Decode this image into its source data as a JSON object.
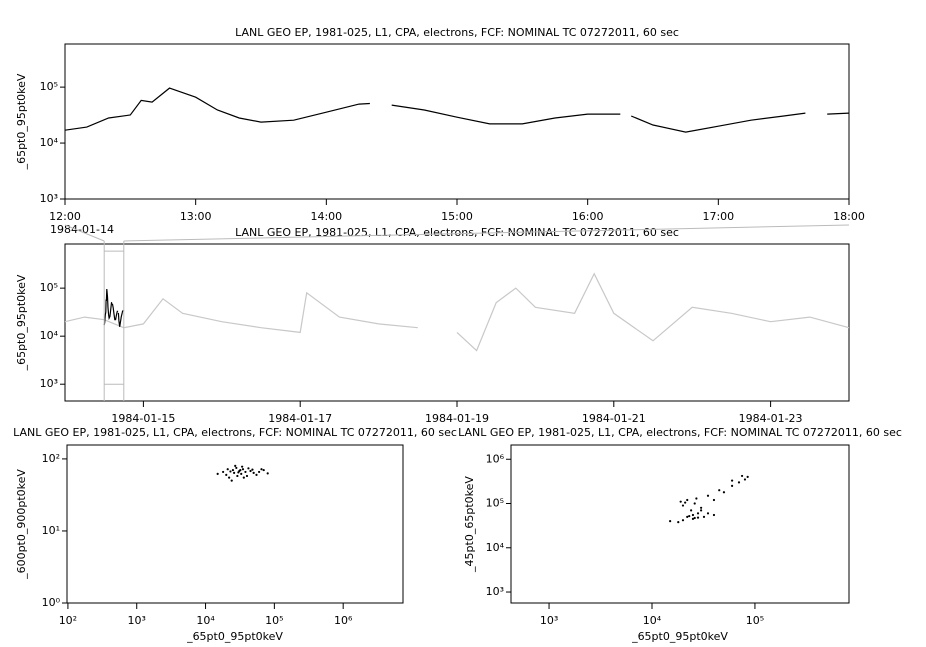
{
  "chart_data": [
    {
      "type": "line",
      "title": "LANL GEO EP, 1981-025, L1, CPA, electrons, FCF: NOMINAL TC 07272011, 60 sec",
      "date": "1984-01-14",
      "ylabel": "_65pt0_95pt0keV",
      "yscale": "log",
      "xlim": [
        "12:00",
        "18:00"
      ],
      "xticks": [
        "12:00",
        "13:00",
        "14:00",
        "15:00",
        "16:00",
        "17:00",
        "18:00"
      ],
      "ylim": [
        1000,
        590000
      ],
      "yticks": [
        {
          "value": 1000,
          "label": "10³"
        },
        {
          "value": 10000,
          "label": "10⁴"
        },
        {
          "value": 100000,
          "label": "10⁵"
        }
      ],
      "x": [
        "12:00",
        "12:10",
        "12:20",
        "12:30",
        "12:35",
        "12:40",
        "12:48",
        "13:00",
        "13:10",
        "13:20",
        "13:30",
        "13:45",
        "14:00",
        "14:15",
        "14:20",
        "14:25",
        "14:30",
        "14:45",
        "15:00",
        "15:15",
        "15:30",
        "15:45",
        "16:00",
        "16:15",
        "16:18",
        "16:20",
        "16:30",
        "16:45",
        "17:00",
        "17:15",
        "17:30",
        "17:40",
        "17:45",
        "17:50",
        "18:00"
      ],
      "series": [
        {
          "color": "#000000",
          "values": [
            17000,
            19300,
            28000,
            31700,
            58000,
            54000,
            96000,
            66000,
            39000,
            28000,
            23700,
            25600,
            35600,
            49700,
            51000,
            null,
            47700,
            39000,
            29000,
            22000,
            22000,
            28000,
            33000,
            33000,
            null,
            30500,
            21000,
            15700,
            20000,
            25600,
            30500,
            34300,
            null,
            33000,
            34300
          ]
        }
      ]
    },
    {
      "type": "line",
      "title": "LANL GEO EP, 1981-025, L1, CPA, electrons, FCF: NOMINAL TC 07272011, 60 sec",
      "ylabel": "_65pt0_95pt0keV",
      "yscale": "log",
      "xlim": [
        "1984-01-14",
        "1984-01-24"
      ],
      "xticks": [
        "1984-01-15",
        "1984-01-17",
        "1984-01-19",
        "1984-01-21",
        "1984-01-23"
      ],
      "ylim": [
        447,
        830000
      ],
      "yticks": [
        {
          "value": 1000,
          "label": "10³"
        },
        {
          "value": 10000,
          "label": "10⁴"
        },
        {
          "value": 100000,
          "label": "10⁵"
        }
      ],
      "x": [
        "1984-01-14 00:00",
        "1984-01-14 06:00",
        "1984-01-14 12:00",
        "1984-01-14 18:00",
        "1984-01-15 00:00",
        "1984-01-15 06:00",
        "1984-01-15 12:00",
        "1984-01-16 00:00",
        "1984-01-16 12:00",
        "1984-01-17 00:00",
        "1984-01-17 02:00",
        "1984-01-17 12:00",
        "1984-01-18 00:00",
        "1984-01-18 12:00",
        "1984-01-18 18:00",
        "1984-01-19 00:00",
        "1984-01-19 06:00",
        "1984-01-19 12:00",
        "1984-01-19 18:00",
        "1984-01-20 00:00",
        "1984-01-20 12:00",
        "1984-01-20 18:00",
        "1984-01-21 00:00",
        "1984-01-21 12:00",
        "1984-01-22 00:00",
        "1984-01-22 12:00",
        "1984-01-23 00:00",
        "1984-01-23 12:00",
        "1984-01-24 00:00"
      ],
      "series": [
        {
          "color": "#c8c8c8",
          "values": [
            20000,
            25000,
            22000,
            15000,
            18000,
            60000,
            30000,
            20000,
            15000,
            12000,
            80000,
            25000,
            18000,
            15000,
            null,
            12000,
            5000,
            50000,
            100000,
            40000,
            30000,
            200000,
            30000,
            8000,
            40000,
            30000,
            20000,
            25000,
            15000
          ]
        }
      ]
    },
    {
      "type": "scatter",
      "title": "LANL GEO EP, 1981-025, L1, CPA, electrons, FCF: NOMINAL TC 07272011, 60 sec",
      "xlabel": "_65pt0_95pt0keV",
      "ylabel": "_600pt0_900pt0keV",
      "xscale": "log",
      "yscale": "log",
      "color": "#000000",
      "xlim": [
        97,
        7400000
      ],
      "xticks": [
        {
          "value": 100,
          "label": "10²"
        },
        {
          "value": 1000,
          "label": "10³"
        },
        {
          "value": 10000,
          "label": "10⁴"
        },
        {
          "value": 100000,
          "label": "10⁵"
        },
        {
          "value": 1000000,
          "label": "10⁶"
        }
      ],
      "ylim": [
        1,
        156
      ],
      "yticks": [
        {
          "value": 1,
          "label": "10⁰"
        },
        {
          "value": 10,
          "label": "10¹"
        },
        {
          "value": 100,
          "label": "10²"
        }
      ],
      "x": [
        20000,
        25000,
        30000,
        35000,
        40000,
        22000,
        28000,
        33000,
        45000,
        50000,
        60000,
        70000,
        80000,
        18000,
        15000,
        24000,
        27000,
        31000,
        38000,
        42000,
        55000,
        65000,
        26000,
        29000,
        34000,
        36000,
        21000,
        23000,
        32000,
        48000
      ],
      "values": [
        60,
        70,
        65,
        72,
        58,
        55,
        75,
        62,
        68,
        64,
        66,
        70,
        63,
        66,
        62,
        50,
        80,
        68,
        66,
        74,
        60,
        72,
        64,
        58,
        78,
        55,
        72,
        67,
        70,
        71
      ]
    },
    {
      "type": "scatter",
      "title": "LANL GEO EP, 1981-025, L1, CPA, electrons, FCF: NOMINAL TC 07272011, 60 sec",
      "xlabel": "_65pt0_95pt0keV",
      "ylabel": "_45pt0_65pt0keV",
      "xscale": "log",
      "yscale": "log",
      "color": "#000000",
      "xlim": [
        427,
        820000
      ],
      "xticks": [
        {
          "value": 1000,
          "label": "10³"
        },
        {
          "value": 10000,
          "label": "10⁴"
        },
        {
          "value": 100000,
          "label": "10⁵"
        }
      ],
      "ylim": [
        565,
        2100000
      ],
      "yticks": [
        {
          "value": 1000,
          "label": "10³"
        },
        {
          "value": 10000,
          "label": "10⁴"
        },
        {
          "value": 100000,
          "label": "10⁵"
        },
        {
          "value": 1000000,
          "label": "10⁶"
        }
      ],
      "x": [
        15000,
        18000,
        20000,
        22000,
        25000,
        28000,
        24000,
        20000,
        19000,
        22000,
        26000,
        30000,
        35000,
        40000,
        32000,
        28000,
        25000,
        30000,
        40000,
        50000,
        60000,
        70000,
        80000,
        85000,
        75000,
        60000,
        45000,
        35000,
        27000,
        21000,
        23000,
        26000
      ],
      "values": [
        40000,
        38000,
        42000,
        50000,
        55000,
        60000,
        70000,
        90000,
        110000,
        120000,
        100000,
        80000,
        60000,
        55000,
        50000,
        48000,
        45000,
        70000,
        120000,
        180000,
        250000,
        300000,
        350000,
        400000,
        420000,
        330000,
        200000,
        150000,
        130000,
        105000,
        52000,
        47000
      ]
    }
  ]
}
